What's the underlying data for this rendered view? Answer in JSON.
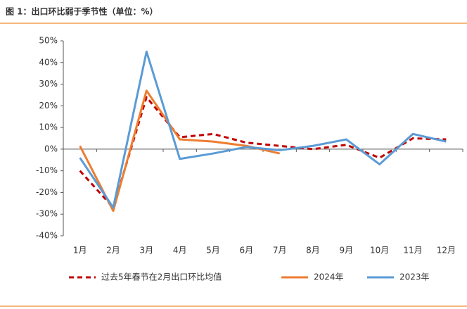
{
  "chart_data": {
    "type": "line",
    "title": "图 1：出口环比弱于季节性（单位：%）",
    "categories": [
      "1月",
      "2月",
      "3月",
      "4月",
      "5月",
      "6月",
      "7月",
      "8月",
      "9月",
      "10月",
      "11月",
      "12月"
    ],
    "series": [
      {
        "name": "过去5年春节在2月出口环比均值",
        "color": "#c00000",
        "dashed": true,
        "values": [
          -10,
          -27,
          24,
          5.5,
          7,
          3,
          1.5,
          0,
          2,
          -4,
          5,
          4.5
        ]
      },
      {
        "name": "2024年",
        "color": "#ed7d31",
        "dashed": false,
        "values": [
          1.5,
          -28.5,
          27,
          4.5,
          3.5,
          1.5,
          -2,
          null,
          null,
          null,
          null,
          null
        ]
      },
      {
        "name": "2023年",
        "color": "#5b9bd5",
        "dashed": false,
        "values": [
          -4,
          -27,
          45,
          -4.5,
          -2,
          1,
          -0.5,
          1.5,
          4.5,
          -7,
          7,
          3.5
        ]
      }
    ],
    "ylim": [
      -40,
      50
    ],
    "yticks": [
      {
        "value": -40,
        "label": "-40%"
      },
      {
        "value": -30,
        "label": "-30%"
      },
      {
        "value": -20,
        "label": "-20%"
      },
      {
        "value": -10,
        "label": "-10%"
      },
      {
        "value": 0,
        "label": "0%"
      },
      {
        "value": 10,
        "label": "10%"
      },
      {
        "value": 20,
        "label": "20%"
      },
      {
        "value": 30,
        "label": "30%"
      },
      {
        "value": 40,
        "label": "40%"
      },
      {
        "value": 50,
        "label": "50%"
      }
    ],
    "grid": false,
    "legend": "bottom"
  }
}
